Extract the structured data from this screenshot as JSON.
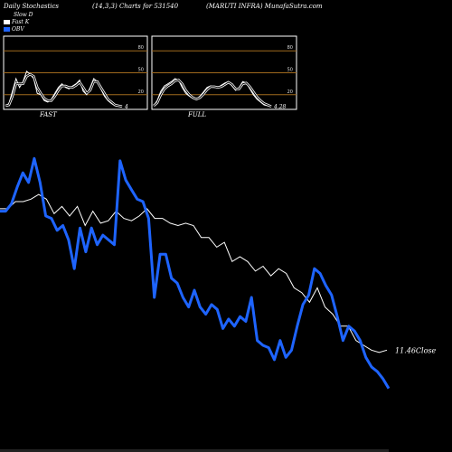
{
  "header": {
    "left": "Daily Stochastics",
    "center": "(14,3,3) Charts for 531540",
    "right": "(MARUTI INFRA) MunafaSutra.com"
  },
  "legend": [
    {
      "label": "Slow  D",
      "color": "#ffffff"
    },
    {
      "label": "Fast K",
      "color": "#ffffff"
    },
    {
      "label": "OBV",
      "color": "#1e64ff"
    }
  ],
  "chart_data": [
    {
      "type": "line",
      "panel": "FAST",
      "ylim": [
        0,
        100
      ],
      "yticks": [
        80,
        50,
        20
      ],
      "band_lines": [
        80,
        50,
        20
      ],
      "last_value_label": "4",
      "series": [
        {
          "name": "Fast K",
          "values": [
            5,
            8,
            25,
            42,
            30,
            38,
            52,
            48,
            42,
            22,
            20,
            12,
            10,
            14,
            22,
            30,
            35,
            30,
            28,
            32,
            35,
            40,
            25,
            20,
            30,
            42,
            38,
            28,
            18,
            12,
            8,
            5,
            4,
            4
          ]
        },
        {
          "name": "Slow  D",
          "values": [
            5,
            6,
            18,
            35,
            35,
            35,
            45,
            48,
            45,
            30,
            22,
            15,
            12,
            12,
            18,
            26,
            32,
            32,
            30,
            30,
            33,
            37,
            30,
            22,
            26,
            38,
            38,
            30,
            22,
            14,
            10,
            6,
            5,
            4
          ]
        }
      ]
    },
    {
      "type": "line",
      "panel": "FULL",
      "ylim": [
        0,
        100
      ],
      "yticks": [
        80,
        50,
        20
      ],
      "band_lines": [
        80,
        50,
        20
      ],
      "last_value_label": "4.28",
      "series": [
        {
          "name": "Fast K",
          "values": [
            5,
            12,
            25,
            32,
            35,
            38,
            42,
            40,
            30,
            22,
            18,
            15,
            14,
            18,
            24,
            30,
            32,
            30,
            30,
            33,
            36,
            38,
            32,
            26,
            30,
            38,
            36,
            28,
            20,
            14,
            10,
            6,
            5,
            4
          ]
        },
        {
          "name": "Slow  D",
          "values": [
            5,
            9,
            20,
            28,
            32,
            35,
            39,
            40,
            35,
            26,
            20,
            16,
            14,
            16,
            21,
            27,
            31,
            31,
            30,
            31,
            34,
            37,
            34,
            28,
            28,
            35,
            36,
            31,
            24,
            17,
            12,
            8,
            6,
            4
          ]
        }
      ]
    },
    {
      "type": "line",
      "panel": "price",
      "ylim": [
        0,
        100
      ],
      "last_value_label": "11.46Close",
      "series": [
        {
          "name": "Close",
          "values": [
            77,
            77,
            80,
            80,
            81,
            83,
            81,
            75,
            78,
            74,
            78,
            70,
            76,
            71,
            72,
            76,
            73,
            72,
            74,
            77,
            73,
            73,
            71,
            70,
            71,
            70,
            65,
            65,
            61,
            63,
            55,
            57,
            55,
            51,
            53,
            49,
            52,
            50,
            44,
            42,
            38,
            44,
            36,
            33,
            28,
            28,
            22,
            20,
            18,
            17,
            18
          ]
        },
        {
          "name": "OBV",
          "values": [
            76,
            76,
            79,
            86,
            92,
            88,
            98,
            88,
            74,
            73,
            68,
            70,
            64,
            52,
            69,
            59,
            69,
            62,
            66,
            64,
            62,
            97,
            89,
            85,
            81,
            80,
            73,
            40,
            58,
            58,
            48,
            46,
            40,
            36,
            43,
            36,
            33,
            37,
            35,
            27,
            31,
            28,
            32,
            30,
            40,
            22,
            20,
            19,
            14,
            22,
            15,
            18,
            28,
            37,
            41,
            52,
            50,
            45,
            41,
            32,
            22,
            28,
            26,
            22,
            15,
            11,
            9,
            6,
            2
          ]
        }
      ]
    }
  ]
}
